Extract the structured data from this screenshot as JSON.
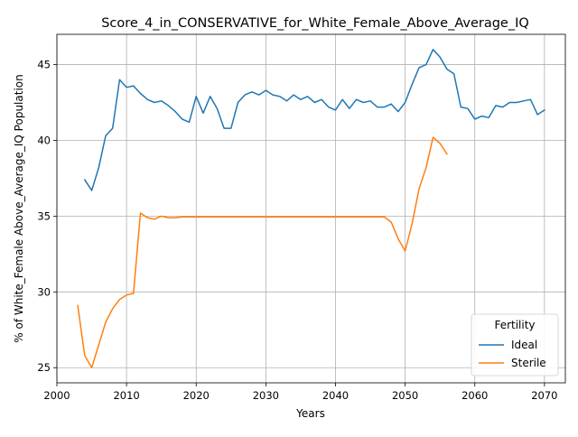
{
  "chart_data": {
    "type": "line",
    "title": "Score_4_in_CONSERVATIVE_for_White_Female_Above_Average_IQ",
    "xlabel": "Years",
    "ylabel": "% of White_Female Above_Average_IQ Population",
    "xlim": [
      2000,
      2073
    ],
    "ylim": [
      24,
      47
    ],
    "xticks": [
      2000,
      2010,
      2020,
      2030,
      2040,
      2050,
      2060,
      2070
    ],
    "yticks": [
      25,
      30,
      35,
      40,
      45
    ],
    "grid": true,
    "legend": {
      "title": "Fertility",
      "position": "lower-right"
    },
    "series": [
      {
        "name": "Ideal",
        "color": "#1f77b4",
        "x": [
          2004,
          2005,
          2006,
          2007,
          2008,
          2009,
          2010,
          2011,
          2012,
          2013,
          2014,
          2015,
          2016,
          2017,
          2018,
          2019,
          2020,
          2021,
          2022,
          2023,
          2024,
          2025,
          2026,
          2027,
          2028,
          2029,
          2030,
          2031,
          2032,
          2033,
          2034,
          2035,
          2036,
          2037,
          2038,
          2039,
          2040,
          2041,
          2042,
          2043,
          2044,
          2045,
          2046,
          2047,
          2048,
          2049,
          2050,
          2051,
          2052,
          2053,
          2054,
          2055,
          2056,
          2057,
          2058,
          2059,
          2060,
          2061,
          2062,
          2063,
          2064,
          2065,
          2066,
          2067,
          2068,
          2069,
          2070
        ],
        "values": [
          37.4,
          36.7,
          38.2,
          40.3,
          40.8,
          44.0,
          43.5,
          43.6,
          43.1,
          42.7,
          42.5,
          42.6,
          42.3,
          41.9,
          41.4,
          41.2,
          42.9,
          41.8,
          42.9,
          42.1,
          40.8,
          40.8,
          42.5,
          43.0,
          43.2,
          43.0,
          43.3,
          43.0,
          42.9,
          42.6,
          43.0,
          42.7,
          42.9,
          42.5,
          42.7,
          42.2,
          42.0,
          42.7,
          42.1,
          42.7,
          42.5,
          42.6,
          42.2,
          42.2,
          42.4,
          41.9,
          42.5,
          43.7,
          44.8,
          45.0,
          46.0,
          45.5,
          44.7,
          44.4,
          42.2,
          42.1,
          41.4,
          41.6,
          41.5,
          42.3,
          42.2,
          42.5,
          42.5,
          42.6,
          42.7,
          41.7,
          42.0
        ]
      },
      {
        "name": "Sterile",
        "color": "#ff7f0e",
        "x": [
          2003,
          2004,
          2005,
          2006,
          2007,
          2008,
          2009,
          2010,
          2011,
          2012,
          2013,
          2014,
          2015,
          2016,
          2017,
          2018,
          2019,
          2020,
          2021,
          2022,
          2023,
          2024,
          2025,
          2026,
          2027,
          2028,
          2029,
          2030,
          2031,
          2032,
          2033,
          2034,
          2035,
          2036,
          2037,
          2038,
          2039,
          2040,
          2041,
          2042,
          2043,
          2044,
          2045,
          2046,
          2047,
          2048,
          2049,
          2050,
          2051,
          2052,
          2053,
          2054,
          2055,
          2056
        ],
        "values": [
          29.1,
          25.8,
          25.0,
          26.5,
          28.0,
          28.9,
          29.5,
          29.8,
          29.9,
          35.2,
          34.9,
          34.8,
          35.0,
          34.9,
          34.9,
          34.95,
          34.95,
          34.95,
          34.95,
          34.95,
          34.95,
          34.95,
          34.95,
          34.95,
          34.95,
          34.95,
          34.95,
          34.95,
          34.95,
          34.95,
          34.95,
          34.95,
          34.95,
          34.95,
          34.95,
          34.95,
          34.95,
          34.95,
          34.95,
          34.95,
          34.95,
          34.95,
          34.95,
          34.95,
          34.95,
          34.6,
          33.5,
          32.7,
          34.5,
          36.8,
          38.2,
          40.2,
          39.8,
          39.1
        ]
      }
    ]
  }
}
